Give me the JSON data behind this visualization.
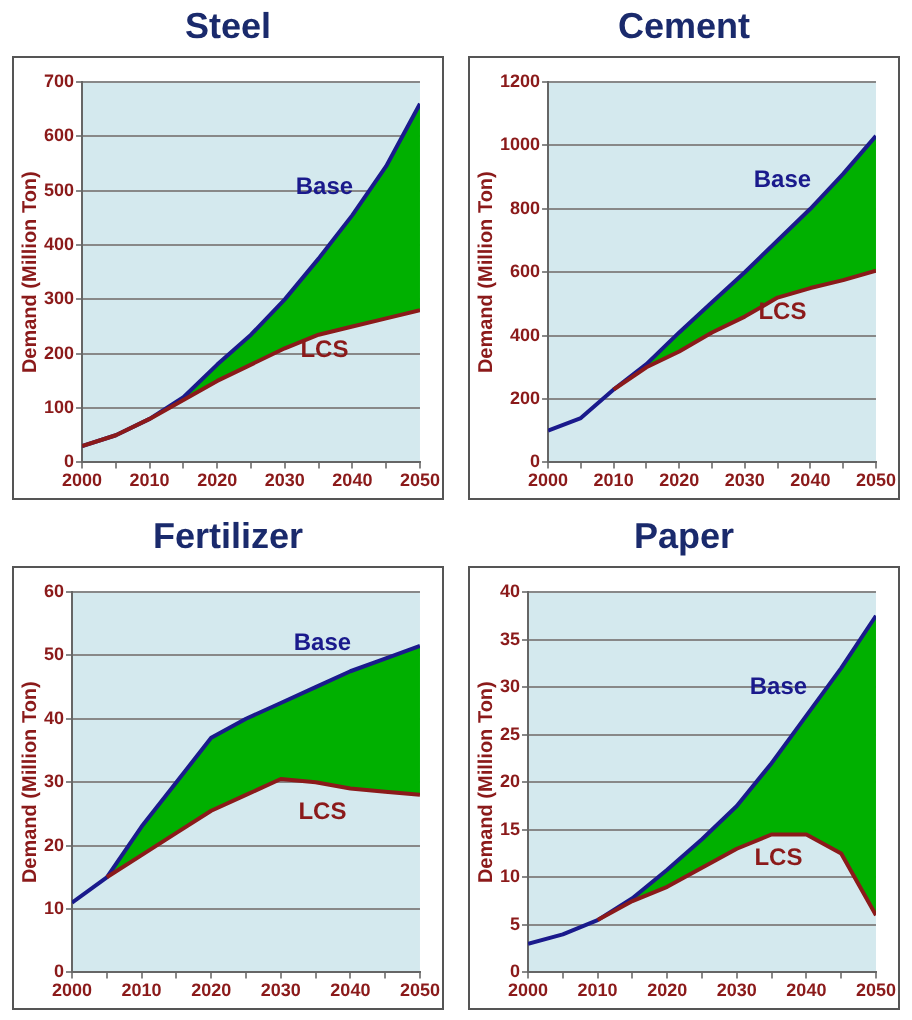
{
  "chart_data": [
    {
      "type": "line",
      "title": "Steel",
      "ylabel": "Demand (Million Ton)",
      "x": [
        2000,
        2005,
        2010,
        2015,
        2020,
        2025,
        2030,
        2035,
        2040,
        2045,
        2050
      ],
      "series": [
        {
          "name": "LCS",
          "color": "#8b1a1a",
          "values": [
            30,
            50,
            80,
            115,
            150,
            180,
            210,
            235,
            250,
            265,
            280
          ]
        },
        {
          "name": "Base",
          "color": "#1a1a8c",
          "values": [
            30,
            50,
            80,
            120,
            180,
            235,
            300,
            375,
            455,
            545,
            660
          ],
          "lower": [
            30,
            50,
            80,
            115,
            150,
            180,
            210,
            235,
            250,
            265,
            280
          ],
          "upper": [
            30,
            50,
            80,
            120,
            180,
            235,
            300,
            375,
            455,
            545,
            660
          ]
        }
      ],
      "xlim": [
        2000,
        2050
      ],
      "xticks": [
        2000,
        {
          "value": 2005,
          "label": null
        },
        2010,
        {
          "value": 2015,
          "label": null
        },
        2020,
        {
          "value": 2025,
          "label": null
        },
        2030,
        {
          "value": 2035,
          "label": null
        },
        2040,
        {
          "value": 2045,
          "label": null
        },
        2050
      ],
      "ylim": [
        0,
        700
      ],
      "yticks": [
        0,
        100,
        200,
        300,
        400,
        500,
        600,
        700
      ],
      "grid": "y",
      "legend": false,
      "marker": "none",
      "line_style": "solid"
    },
    {
      "type": "line",
      "title": "Cement",
      "ylabel": "Demand (Million Ton)",
      "x": [
        2000,
        2005,
        2010,
        2015,
        2020,
        2025,
        2030,
        2035,
        2040,
        2045,
        2050
      ],
      "series": [
        {
          "name": "LCS",
          "color": "#8b1a1a",
          "values": [
            null,
            null,
            230,
            300,
            350,
            410,
            460,
            520,
            550,
            575,
            605
          ]
        },
        {
          "name": "Base",
          "color": "#1a1a8c",
          "values": [
            100,
            140,
            230,
            310,
            410,
            505,
            600,
            700,
            800,
            910,
            1030
          ],
          "lower": [
            null,
            null,
            230,
            300,
            350,
            410,
            460,
            520,
            550,
            575,
            605
          ],
          "upper": [
            null,
            null,
            230,
            310,
            410,
            505,
            600,
            700,
            800,
            910,
            1030
          ]
        }
      ],
      "xlim": [
        2000,
        2050
      ],
      "xticks": [
        2000,
        {
          "value": 2005,
          "label": null
        },
        2010,
        {
          "value": 2015,
          "label": null
        },
        2020,
        {
          "value": 2025,
          "label": null
        },
        2030,
        {
          "value": 2035,
          "label": null
        },
        2040,
        {
          "value": 2045,
          "label": null
        },
        2050
      ],
      "ylim": [
        0,
        1200
      ],
      "yticks": [
        0,
        200,
        400,
        600,
        800,
        1000,
        1200
      ],
      "grid": "y",
      "legend": false,
      "marker": "none",
      "line_style": "solid"
    },
    {
      "type": "line",
      "title": "Fertilizer",
      "ylabel": "Demand (Million Ton)",
      "x": [
        2000,
        2005,
        2010,
        2015,
        2020,
        2025,
        2030,
        2035,
        2040,
        2045,
        2050
      ],
      "series": [
        {
          "name": "LCS",
          "color": "#8b1a1a",
          "values": [
            null,
            15,
            18.5,
            22,
            25.5,
            28,
            30.5,
            30,
            29,
            28.5,
            28
          ]
        },
        {
          "name": "Base",
          "color": "#1a1a8c",
          "values": [
            11,
            15,
            23,
            30,
            37,
            40,
            42.5,
            45,
            47.5,
            49.5,
            51.5
          ],
          "lower": [
            null,
            15,
            18.5,
            22,
            25.5,
            28,
            30.5,
            30,
            29,
            28.5,
            28
          ],
          "upper": [
            null,
            15,
            23,
            30,
            37,
            40,
            42.5,
            45,
            47.5,
            49.5,
            51.5
          ]
        }
      ],
      "xlim": [
        2000,
        2050
      ],
      "xticks": [
        2000,
        {
          "value": 2005,
          "label": null
        },
        2010,
        {
          "value": 2015,
          "label": null
        },
        2020,
        {
          "value": 2025,
          "label": null
        },
        2030,
        {
          "value": 2035,
          "label": null
        },
        2040,
        {
          "value": 2045,
          "label": null
        },
        2050
      ],
      "ylim": [
        0,
        60
      ],
      "yticks": [
        0,
        10,
        20,
        30,
        40,
        50,
        60
      ],
      "grid": "y",
      "legend": false,
      "marker": "none",
      "line_style": "solid"
    },
    {
      "type": "line",
      "title": "Paper",
      "ylabel": "Demand (Million Ton)",
      "x": [
        2000,
        2005,
        2010,
        2015,
        2020,
        2025,
        2030,
        2035,
        2040,
        2045,
        2050
      ],
      "series": [
        {
          "name": "LCS",
          "color": "#8b1a1a",
          "values": [
            null,
            null,
            5.5,
            7.5,
            9,
            11,
            13,
            14.5,
            14.5,
            12.5,
            6
          ]
        },
        {
          "name": "Base",
          "color": "#1a1a8c",
          "values": [
            3,
            4,
            5.5,
            7.8,
            10.8,
            14,
            17.5,
            22,
            27,
            32,
            37.5
          ],
          "lower": [
            null,
            null,
            5.5,
            7.5,
            9,
            11,
            13,
            14.5,
            14.5,
            12.5,
            6
          ],
          "upper": [
            null,
            null,
            5.5,
            7.8,
            10.8,
            14,
            17.5,
            22,
            27,
            32,
            37.5
          ]
        }
      ],
      "xlim": [
        2000,
        2050
      ],
      "xticks": [
        2000,
        {
          "value": 2005,
          "label": null
        },
        2010,
        {
          "value": 2015,
          "label": null
        },
        2020,
        {
          "value": 2025,
          "label": null
        },
        2030,
        {
          "value": 2035,
          "label": null
        },
        2040,
        {
          "value": 2045,
          "label": null
        },
        2050
      ],
      "ylim": [
        0,
        40
      ],
      "yticks": [
        0,
        5,
        10,
        15,
        20,
        25,
        30,
        35,
        40
      ],
      "grid": "y",
      "legend": false,
      "marker": "none",
      "line_style": "solid"
    }
  ]
}
